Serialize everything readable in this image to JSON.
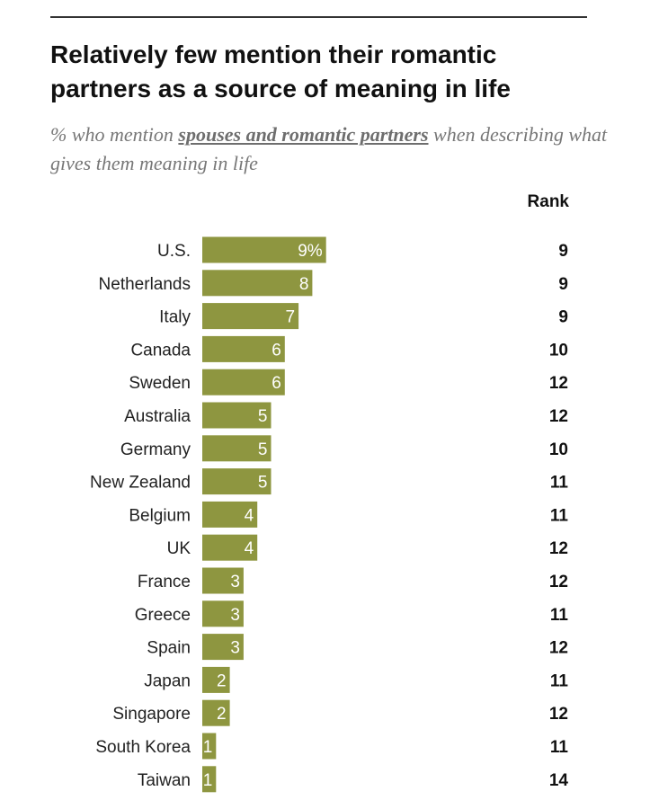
{
  "header": {
    "title": "Relatively few mention their romantic partners as a source of meaning in life",
    "subtitle_prefix": "% who mention ",
    "subtitle_emphasis": "spouses and romantic partners",
    "subtitle_suffix": " when describing what gives them meaning in life",
    "rank_label": "Rank"
  },
  "colors": {
    "bar": "#8e9640",
    "value_text": "#ffffff",
    "label_text": "#222222"
  },
  "chart_data": {
    "type": "bar",
    "orientation": "horizontal",
    "title": "Relatively few mention their romantic partners as a source of meaning in life",
    "subtitle": "% who mention spouses and romantic partners when describing what gives them meaning in life",
    "categories": [
      "U.S.",
      "Netherlands",
      "Italy",
      "Canada",
      "Sweden",
      "Australia",
      "Germany",
      "New Zealand",
      "Belgium",
      "UK",
      "France",
      "Greece",
      "Spain",
      "Japan",
      "Singapore",
      "South Korea",
      "Taiwan"
    ],
    "values": [
      9,
      8,
      7,
      6,
      6,
      5,
      5,
      5,
      4,
      4,
      3,
      3,
      3,
      2,
      2,
      1,
      1
    ],
    "value_labels": [
      "9%",
      "8",
      "7",
      "6",
      "6",
      "5",
      "5",
      "5",
      "4",
      "4",
      "3",
      "3",
      "3",
      "2",
      "2",
      "1",
      "1"
    ],
    "rank_label": "Rank",
    "ranks": [
      9,
      9,
      9,
      10,
      12,
      12,
      10,
      11,
      11,
      12,
      12,
      11,
      12,
      11,
      12,
      11,
      14
    ],
    "grid": false,
    "legend": "none"
  }
}
